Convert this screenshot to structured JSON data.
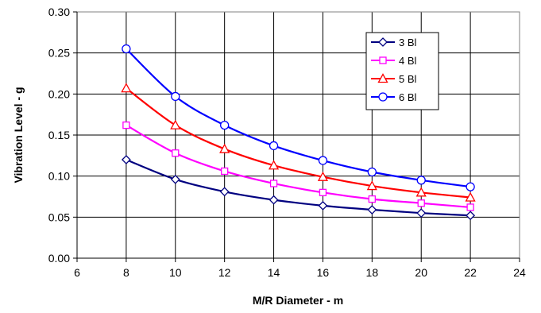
{
  "chart_data": {
    "type": "line",
    "xlabel": "M/R Diameter - m",
    "ylabel": "Vibration Level - g",
    "xlim": [
      6,
      24
    ],
    "ylim": [
      0,
      0.3
    ],
    "x_ticks": [
      "6",
      "8",
      "10",
      "12",
      "14",
      "16",
      "18",
      "20",
      "22",
      "24"
    ],
    "y_ticks": [
      "0.00",
      "0.05",
      "0.10",
      "0.15",
      "0.20",
      "0.25",
      "0.30"
    ],
    "grid": true,
    "legend_position": "top-right",
    "x": [
      8,
      10,
      12,
      14,
      16,
      18,
      20,
      22
    ],
    "series": [
      {
        "name": "3 Bl",
        "color": "#000080",
        "marker": "diamond",
        "values": [
          0.12,
          0.096,
          0.081,
          0.071,
          0.064,
          0.059,
          0.055,
          0.052
        ]
      },
      {
        "name": "4 Bl",
        "color": "#ff00ff",
        "marker": "square",
        "values": [
          0.162,
          0.128,
          0.106,
          0.091,
          0.08,
          0.072,
          0.067,
          0.062
        ]
      },
      {
        "name": "5 Bl",
        "color": "#ff0000",
        "marker": "triangle",
        "values": [
          0.207,
          0.162,
          0.133,
          0.113,
          0.099,
          0.088,
          0.08,
          0.074
        ]
      },
      {
        "name": "6 Bl",
        "color": "#0000ff",
        "marker": "circle",
        "values": [
          0.255,
          0.197,
          0.162,
          0.137,
          0.119,
          0.105,
          0.095,
          0.087
        ]
      }
    ]
  }
}
